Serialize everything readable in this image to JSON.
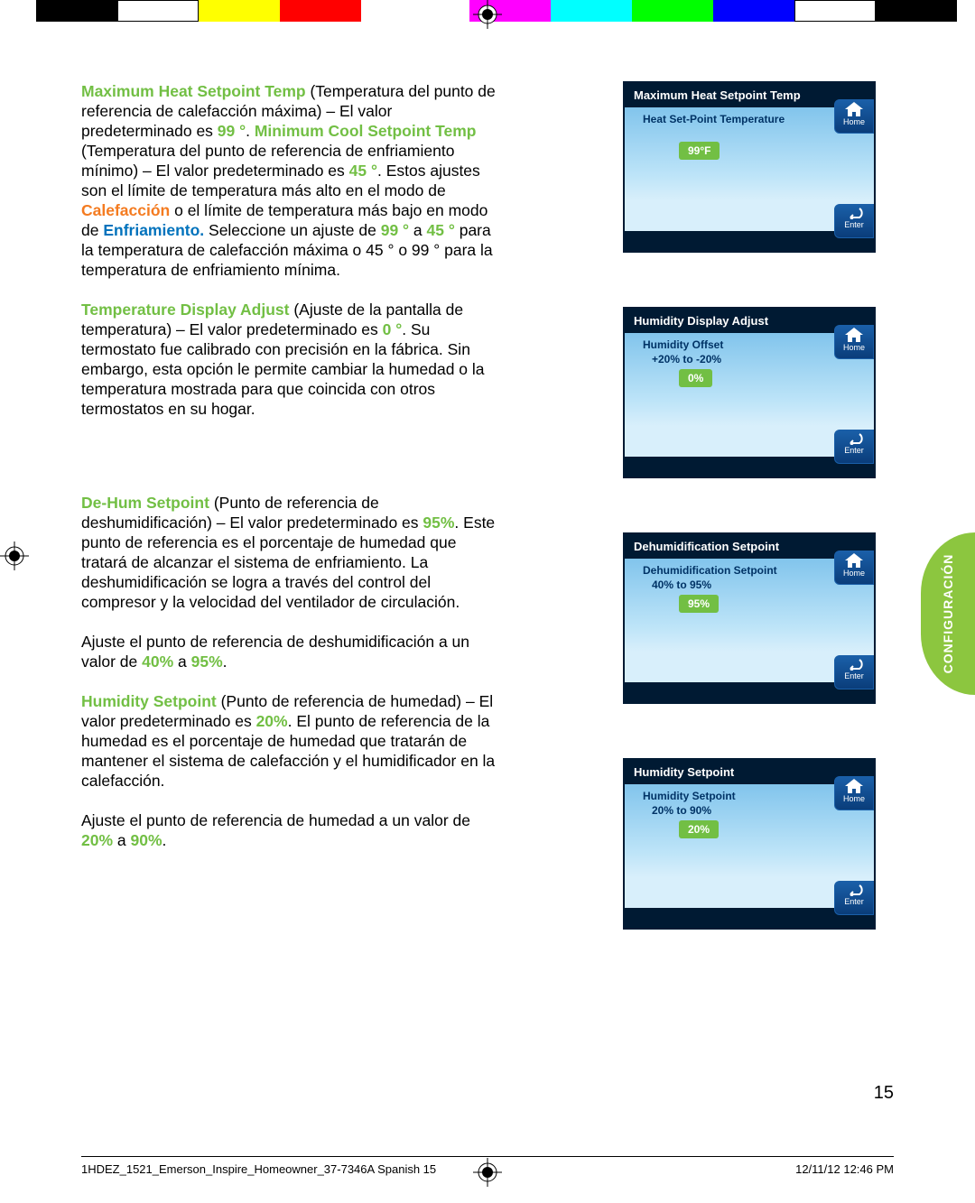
{
  "colorbar": [
    "#000000",
    "#ffffff",
    "#ffff00",
    "#ff0000",
    "#ff00ff",
    "#00ffff",
    "#00ff00",
    "#0000ff",
    "#ffffff",
    "#000000"
  ],
  "text": {
    "p1_a": "Maximum Heat Setpoint Temp",
    "p1_b": " (Temperatura del punto de referencia de calefacción máxima) – El valor predeterminado es ",
    "p1_c": "99 °",
    "p1_d": ". ",
    "p1_e": "Minimum Cool Setpoint Temp",
    "p1_f": " (Temperatura del punto de referencia de enfriamiento mínimo) – El valor predeterminado es ",
    "p1_g": "45 °",
    "p1_h": ". Estos ajustes son el límite de temperatura más alto en el modo de ",
    "p1_i": "Calefacción",
    "p1_j": " o el límite de temperatura más bajo en modo de ",
    "p1_k": "Enfriamiento.",
    "p1_l": " Seleccione un ajuste de ",
    "p1_m": "99 °",
    "p1_n": " a ",
    "p1_o": "45 °",
    "p1_p": " para la temperatura de calefacción máxima o 45 ° o 99 ° para la temperatura de enfriamiento mínima.",
    "p2_a": "Temperature Display Adjust",
    "p2_b": " (Ajuste de la pantalla de temperatura) – El valor predeterminado es ",
    "p2_c": "0 °",
    "p2_d": ". Su termostato fue calibrado con precisión en la fábrica. Sin embargo, esta opción le permite cambiar la humedad o la temperatura mostrada para que coincida con otros termostatos en su hogar.",
    "p3_a": "De-Hum Setpoint",
    "p3_b": " (Punto de referencia de deshumidificación) – El valor predeterminado es ",
    "p3_c": "95%",
    "p3_d": ". Este punto de referencia es el porcentaje de humedad que tratará de alcanzar el sistema de enfriamiento. La deshumidificación se logra a través del control del compresor y la velocidad del ventilador de circulación.",
    "p3_e": "Ajuste el punto de referencia de deshumidificación a un valor de ",
    "p3_f": "40%",
    "p3_g": " a ",
    "p3_h": "95%",
    "p3_i": ".",
    "p4_a": "Humidity Setpoint",
    "p4_b": " (Punto de referencia de humedad) – El valor predeterminado es ",
    "p4_c": "20%",
    "p4_d": ". El punto de referencia de la humedad es el porcentaje de humedad que tratarán de mantener el sistema de calefacción y el humidificador en la calefacción.",
    "p4_e": "Ajuste el punto de referencia de humedad a un valor de ",
    "p4_f": "20%",
    "p4_g": " a ",
    "p4_h": "90%",
    "p4_i": "."
  },
  "screens": [
    {
      "title": "Maximum Heat Setpoint Temp",
      "sub": "Heat Set-Point Temperature",
      "range": "",
      "badge": "99°F"
    },
    {
      "title": "Humidity Display Adjust",
      "sub": "Humidity Offset",
      "range": "+20% to -20%",
      "badge": "0%"
    },
    {
      "title": "Dehumidification Setpoint",
      "sub": "Dehumidification Setpoint",
      "range": "40% to 95%",
      "badge": "95%"
    },
    {
      "title": "Humidity Setpoint",
      "sub": "Humidity Setpoint",
      "range": "20% to 90%",
      "badge": "20%"
    }
  ],
  "buttons": {
    "home": "Home",
    "enter": "Enter"
  },
  "sideTab": "CONFIGURACIÓN",
  "pageNum": "15",
  "footer": {
    "left": "1HDEZ_1521_Emerson_Inspire_Homeowner_37-7346A Spanish   15",
    "right": "12/11/12   12:46 PM"
  }
}
